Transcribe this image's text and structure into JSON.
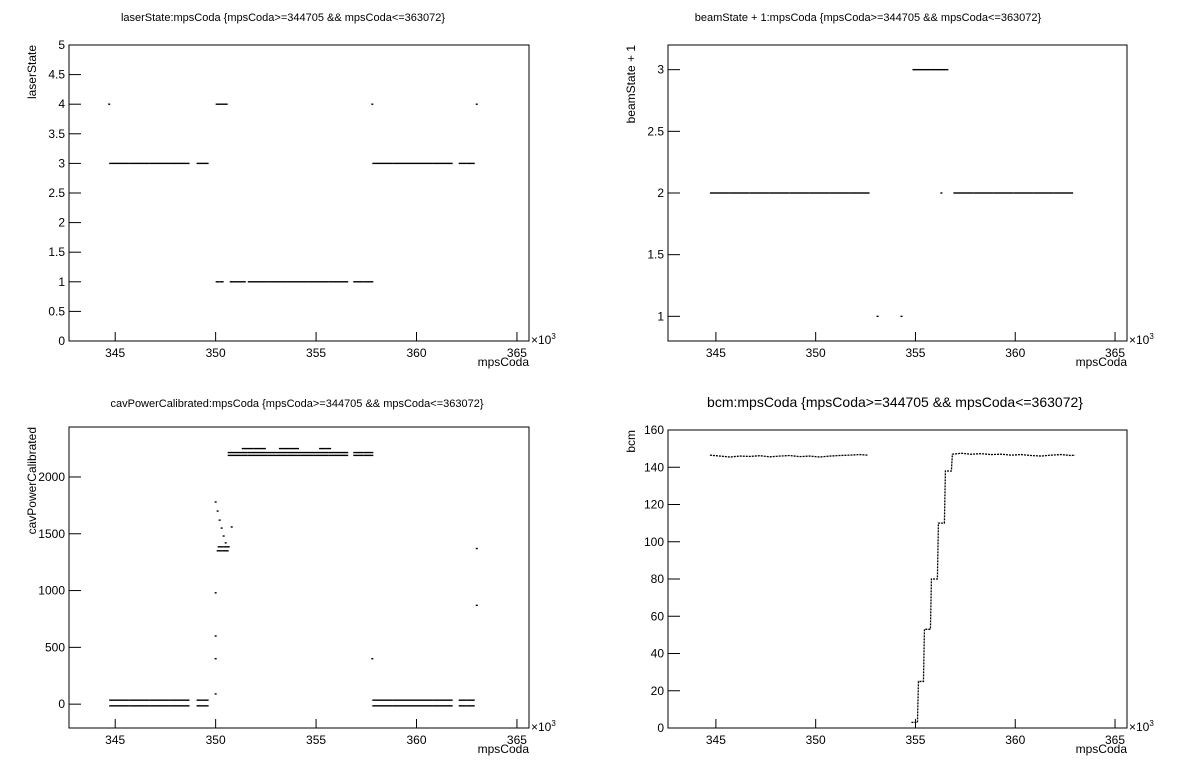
{
  "chart_data": [
    {
      "type": "scatter",
      "title": "laserState:mpsCoda {mpsCoda>=344705 && mpsCoda<=363072}",
      "x_label": "mpsCoda",
      "y_label": "laserState",
      "x_factor_base": "×10",
      "x_factor_exp": "3",
      "color": "#000000",
      "xlim": [
        342.7,
        365.6
      ],
      "xticks": [
        345,
        350,
        355,
        360,
        365
      ],
      "ylim": [
        0,
        5
      ],
      "yticks": [
        0,
        0.5,
        1,
        1.5,
        2,
        2.5,
        3,
        3.5,
        4,
        4.5,
        5
      ],
      "x": [
        345.2,
        346.2,
        347.2,
        348.2,
        349.2,
        349.5,
        344.7,
        350.15,
        350.45,
        357.8,
        363.0,
        350.1,
        350.3,
        351.1,
        352.1,
        353.1,
        354.1,
        355.1,
        356.1,
        357.1,
        357.6,
        358.3,
        359.3,
        360.3,
        361.3,
        362.3,
        362.7
      ],
      "values": [
        3,
        3,
        3,
        3,
        3,
        3,
        4,
        4,
        4,
        4,
        4,
        1,
        1,
        1,
        1,
        1,
        1,
        1,
        1,
        1,
        1,
        3,
        3,
        3,
        3,
        3,
        3
      ]
    },
    {
      "type": "scatter",
      "title": "beamState + 1:mpsCoda {mpsCoda>=344705 && mpsCoda<=363072}",
      "x_label": "mpsCoda",
      "y_label": "beamState + 1",
      "x_factor_base": "×10",
      "x_factor_exp": "3",
      "color": "#000000",
      "xlim": [
        342.6,
        365.6
      ],
      "xticks": [
        345,
        350,
        355,
        360,
        365
      ],
      "ylim": [
        0.8,
        3.2
      ],
      "yticks": [
        1,
        1.5,
        2,
        2.5,
        3
      ],
      "x": [
        345.2,
        346.2,
        347.2,
        348.2,
        349.2,
        350.2,
        351.2,
        352.2,
        353.1,
        354.3,
        355.3,
        356.2,
        356.3,
        357.4,
        358.4,
        359.4,
        360.4,
        361.4,
        362.4
      ],
      "values": [
        2,
        2,
        2,
        2,
        2,
        2,
        2,
        2,
        1,
        1,
        3,
        3,
        2,
        2,
        2,
        2,
        2,
        2,
        2
      ]
    },
    {
      "type": "scatter",
      "title": "cavPowerCalibrated:mpsCoda {mpsCoda>=344705 && mpsCoda<=363072}",
      "x_label": "mpsCoda",
      "y_label": "cavPowerCalibrated",
      "x_factor_base": "×10",
      "x_factor_exp": "3",
      "color": "#000000",
      "xlim": [
        342.7,
        365.6
      ],
      "xticks": [
        345,
        350,
        355,
        360,
        365
      ],
      "ylim": [
        -210,
        2440
      ],
      "yticks": [
        0,
        500,
        1000,
        1500,
        2000
      ],
      "x": [
        345.2,
        346.2,
        347.2,
        348.2,
        349.2,
        349.5,
        345.2,
        346.2,
        347.2,
        348.2,
        349.2,
        349.5,
        358.3,
        359.3,
        360.3,
        361.3,
        362.3,
        362.7,
        358.3,
        359.3,
        360.3,
        361.3,
        362.3,
        362.7,
        351.1,
        352.1,
        353.1,
        354.1,
        355.1,
        356.1,
        357.1,
        357.6,
        351.1,
        352.1,
        353.1,
        354.1,
        355.1,
        356.1,
        357.1,
        357.6,
        351.6,
        352.2,
        353.4,
        353.9,
        355.3,
        355.6,
        350.0,
        350.1,
        350.2,
        350.3,
        350.4,
        350.5,
        350.8,
        350.2,
        350.5,
        350.25,
        350.55,
        350.0,
        350.0,
        350.0,
        350.0,
        357.8,
        363.0,
        363.0
      ],
      "values": [
        35,
        35,
        35,
        35,
        35,
        35,
        -15,
        -15,
        -15,
        -15,
        -15,
        -15,
        35,
        35,
        35,
        35,
        35,
        35,
        -15,
        -15,
        -15,
        -15,
        -15,
        -15,
        2190,
        2190,
        2190,
        2190,
        2190,
        2190,
        2190,
        2190,
        2215,
        2215,
        2215,
        2215,
        2215,
        2215,
        2215,
        2215,
        2250,
        2250,
        2250,
        2250,
        2250,
        2250,
        1780,
        1700,
        1620,
        1550,
        1480,
        1420,
        1560,
        1350,
        1350,
        1385,
        1385,
        980,
        600,
        400,
        90,
        400,
        1370,
        870
      ]
    },
    {
      "type": "line",
      "title": "bcm:mpsCoda {mpsCoda>=344705 && mpsCoda<=363072}",
      "x_label": "mpsCoda",
      "y_label": "bcm",
      "x_factor_base": "×10",
      "x_factor_exp": "3",
      "color": "#000000",
      "xlim": [
        342.6,
        365.6
      ],
      "xticks": [
        345,
        350,
        355,
        360,
        365
      ],
      "ylim": [
        0,
        160
      ],
      "yticks": [
        0,
        20,
        40,
        60,
        80,
        100,
        120,
        140,
        160
      ],
      "x": [
        344.7,
        345.2,
        345.7,
        346.2,
        346.7,
        347.2,
        347.7,
        348.2,
        348.7,
        349.2,
        349.7,
        350.2,
        350.7,
        351.2,
        351.7,
        352.2,
        352.6,
        353.7,
        354.8,
        355.1,
        355.15,
        355.4,
        355.45,
        355.75,
        355.8,
        356.1,
        356.15,
        356.45,
        356.5,
        356.8,
        356.85,
        357.3,
        357.8,
        358.3,
        358.8,
        359.3,
        359.8,
        360.3,
        360.8,
        361.3,
        361.8,
        362.3,
        362.8,
        363.0
      ],
      "values": [
        146.5,
        146,
        145.5,
        146,
        145.8,
        146.2,
        145.6,
        146,
        146.3,
        145.7,
        146,
        145.5,
        146,
        146.3,
        146.5,
        146.8,
        146.5,
        null,
        3,
        3,
        25,
        25,
        53,
        53,
        80,
        80,
        110,
        110,
        138,
        138,
        147,
        147.5,
        147,
        147.3,
        146.8,
        147,
        146.5,
        146.8,
        146.3,
        146,
        146.5,
        146.8,
        146.3,
        146.5
      ]
    }
  ]
}
